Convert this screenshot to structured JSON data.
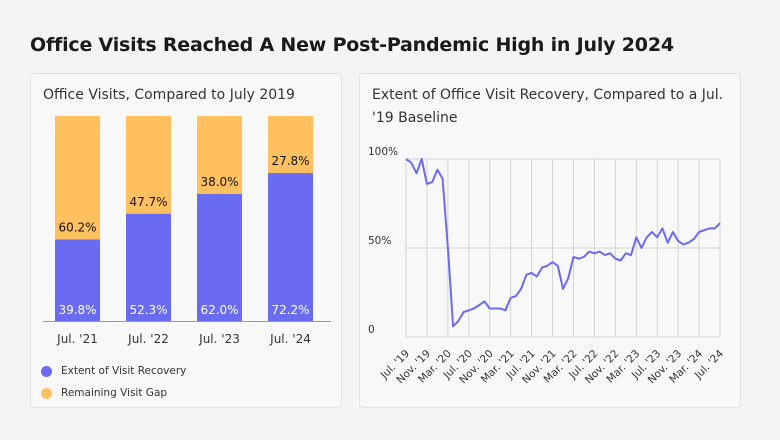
{
  "title": "Office Visits Reached A New Post-Pandemic High in July 2024",
  "colors": {
    "recovery": "#6b6bf2",
    "gap": "#ffc060",
    "line": "#6b6bf2",
    "grid": "#d4d4d4"
  },
  "chart_data": [
    {
      "type": "bar",
      "stacked": true,
      "title": "Office Visits, Compared to July 2019",
      "categories": [
        "Jul. '21",
        "Jul. '22",
        "Jul. '23",
        "Jul. '24"
      ],
      "series": [
        {
          "name": "Extent of Visit Recovery",
          "values": [
            39.8,
            52.3,
            62.0,
            72.2
          ],
          "labels": [
            "39.8%",
            "52.3%",
            "62.0%",
            "72.2%"
          ]
        },
        {
          "name": "Remaining Visit Gap",
          "values": [
            60.2,
            47.7,
            38.0,
            27.8
          ],
          "labels": [
            "60.2%",
            "47.7%",
            "38.0%",
            "27.8%"
          ]
        }
      ],
      "ylim": [
        0,
        100
      ],
      "legend_position": "bottom-left"
    },
    {
      "type": "line",
      "title": "Extent of Office Visit Recovery, Compared to a Jul. '19 Baseline",
      "y_ticks": [
        0,
        50,
        100
      ],
      "y_tick_labels": [
        "0",
        "50%",
        "100%"
      ],
      "ylim": [
        0,
        100
      ],
      "x_tick_labels": [
        "Jul. '19",
        "Nov. '19",
        "Mar. '20",
        "Jul. '20",
        "Nov. '20",
        "Mar. '21",
        "Jul. '21",
        "Nov. '21",
        "Mar. '22",
        "Jul. '22",
        "Nov. '22",
        "Mar. '23",
        "Jul. '23",
        "Nov. '23",
        "Mar. '24",
        "Jul. '24"
      ],
      "x": [
        "2019-07",
        "2019-08",
        "2019-09",
        "2019-10",
        "2019-11",
        "2019-12",
        "2020-01",
        "2020-02",
        "2020-03",
        "2020-04",
        "2020-05",
        "2020-06",
        "2020-07",
        "2020-08",
        "2020-09",
        "2020-10",
        "2020-11",
        "2020-12",
        "2021-01",
        "2021-02",
        "2021-03",
        "2021-04",
        "2021-05",
        "2021-06",
        "2021-07",
        "2021-08",
        "2021-09",
        "2021-10",
        "2021-11",
        "2021-12",
        "2022-01",
        "2022-02",
        "2022-03",
        "2022-04",
        "2022-05",
        "2022-06",
        "2022-07",
        "2022-08",
        "2022-09",
        "2022-10",
        "2022-11",
        "2022-12",
        "2023-01",
        "2023-02",
        "2023-03",
        "2023-04",
        "2023-05",
        "2023-06",
        "2023-07",
        "2023-08",
        "2023-09",
        "2023-10",
        "2023-11",
        "2023-12",
        "2024-01",
        "2024-02",
        "2024-03",
        "2024-04",
        "2024-05",
        "2024-06",
        "2024-07"
      ],
      "values": [
        100,
        98,
        92,
        100,
        86,
        87,
        94,
        89,
        50,
        6,
        9,
        14,
        15,
        16,
        18,
        20,
        16,
        16,
        16,
        15,
        22,
        23,
        27,
        35,
        36,
        34,
        39,
        40,
        42,
        40,
        27,
        33,
        45,
        44,
        45,
        48,
        47,
        48,
        46,
        47,
        44,
        43,
        47,
        46,
        56,
        50,
        56,
        59,
        56,
        61,
        53,
        59,
        54,
        52,
        53,
        55,
        59,
        60,
        61,
        61,
        64
      ],
      "grid": true
    }
  ]
}
